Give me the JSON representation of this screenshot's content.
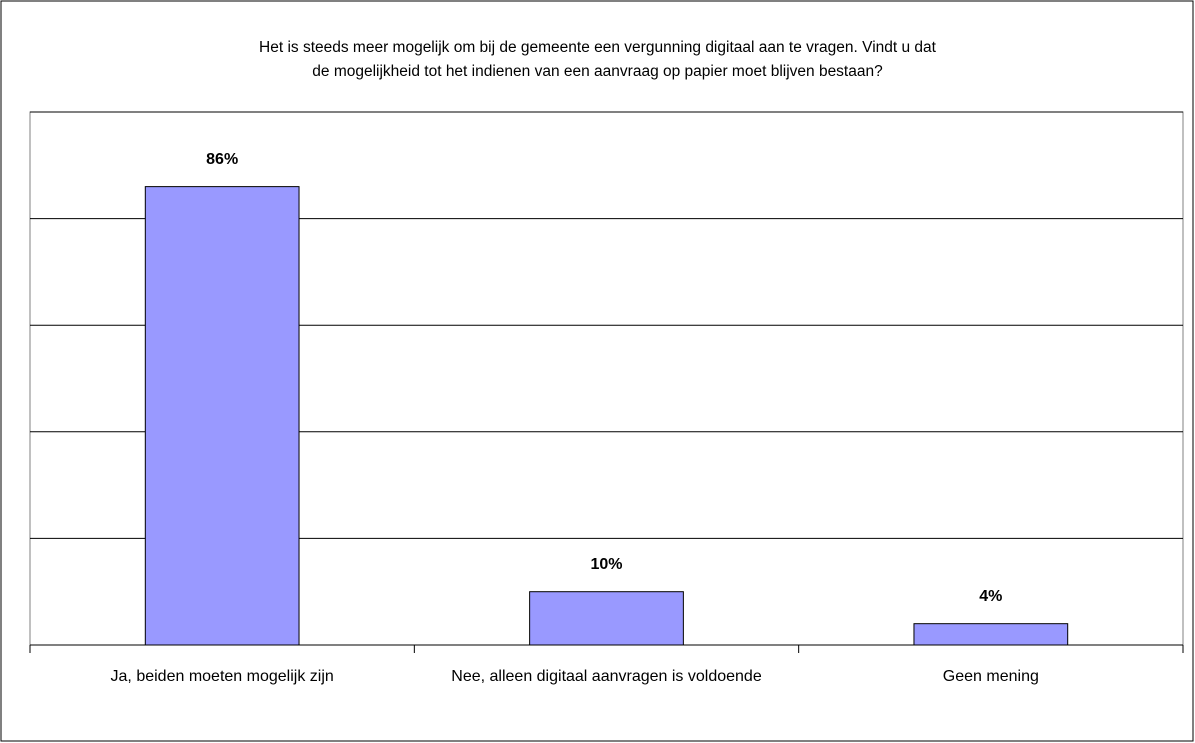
{
  "chart_data": {
    "type": "bar",
    "title": [
      "Het is steeds meer mogelijk om bij de gemeente een vergunning digitaal aan te vragen. Vindt u dat",
      "de mogelijkheid tot het indienen van een aanvraag op papier moet blijven bestaan?"
    ],
    "categories": [
      "Ja, beiden moeten mogelijk zijn",
      "Nee, alleen digitaal aanvragen is voldoende",
      "Geen mening"
    ],
    "values": [
      86,
      10,
      4
    ],
    "value_labels": [
      "86%",
      "10%",
      "4%"
    ],
    "color": "#9999ff",
    "ylim": [
      0,
      100
    ],
    "yticks": [
      0,
      20,
      40,
      60,
      80,
      100
    ],
    "grid": true
  }
}
